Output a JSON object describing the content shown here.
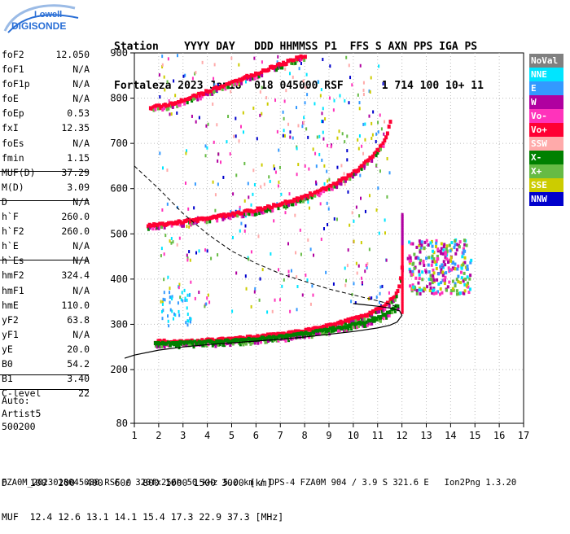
{
  "logo": {
    "line1": "Lowell",
    "line2": "DIGISONDE",
    "accent": "#2a6fd6"
  },
  "header": {
    "line1": "Station    YYYY DAY   DDD HHMMSS P1  FFS S AXN PPS IGA PS",
    "line2": "Fortaleza 2023 Jan18  018 045000 RSF      1 714 100 10+ 11"
  },
  "params": [
    {
      "label": "foF2",
      "value": "12.050"
    },
    {
      "label": "foF1",
      "value": "N/A"
    },
    {
      "label": "foF1p",
      "value": "N/A"
    },
    {
      "label": "foE",
      "value": "N/A"
    },
    {
      "label": "foEp",
      "value": "0.53"
    },
    {
      "label": "fxI",
      "value": "12.35"
    },
    {
      "label": "foEs",
      "value": "N/A"
    },
    {
      "label": "fmin",
      "value": "1.15"
    },
    {
      "label": "MUF(D)",
      "value": "37.29"
    },
    {
      "label": "M(D)",
      "value": "3.09"
    },
    {
      "label": "D",
      "value": "N/A"
    },
    {
      "label": "h`F",
      "value": "260.0"
    },
    {
      "label": "h`F2",
      "value": "260.0"
    },
    {
      "label": "h`E",
      "value": "N/A"
    },
    {
      "label": "h`Es",
      "value": "N/A"
    },
    {
      "label": "hmF2",
      "value": "324.4"
    },
    {
      "label": "hmF1",
      "value": "N/A"
    },
    {
      "label": "hmE",
      "value": "110.0"
    },
    {
      "label": "yF2",
      "value": "63.8"
    },
    {
      "label": "yF1",
      "value": "N/A"
    },
    {
      "label": "yE",
      "value": "20.0"
    },
    {
      "label": "B0",
      "value": "54.2"
    },
    {
      "label": "B1",
      "value": "3.40"
    },
    {
      "label": "C-level",
      "value": "22"
    }
  ],
  "autoscaling": {
    "line1": "Auto:",
    "line2": "Artist5",
    "line3": "500200"
  },
  "legend": [
    {
      "label": "NoVal",
      "color": "#808080"
    },
    {
      "label": "NNE",
      "color": "#00e5ff"
    },
    {
      "label": "E",
      "color": "#3399ff"
    },
    {
      "label": "W",
      "color": "#b000a0"
    },
    {
      "label": "Vo-",
      "color": "#ff33bb"
    },
    {
      "label": "Vo+",
      "color": "#ff0033"
    },
    {
      "label": "SSW",
      "color": "#ffaaaa"
    },
    {
      "label": "X-",
      "color": "#008000"
    },
    {
      "label": "X+",
      "color": "#66bb44"
    },
    {
      "label": "SSE",
      "color": "#cccc00"
    },
    {
      "label": "NNW",
      "color": "#0000cc"
    }
  ],
  "footer": {
    "line1": "D    100  200  400  600  800 1000 1500 3000 [km]",
    "line2": "MUF  12.4 12.6 13.1 14.1 15.4 17.3 22.9 37.3 [MHz]",
    "line3": "FZA0M_2023018045000.RSF / 320fx256h 50 kHz 5.0 km / DPS-4 FZA0M 904 / 3.9 S 321.6 E   Ion2Png 1.3.20"
  },
  "chart_data": {
    "type": "scatter",
    "xlim": [
      1,
      17
    ],
    "ylim": [
      80,
      900
    ],
    "x_ticks": [
      1,
      2,
      3,
      4,
      5,
      6,
      7,
      8,
      9,
      10,
      11,
      12,
      13,
      14,
      15,
      16,
      17
    ],
    "y_ticks": [
      80,
      200,
      300,
      400,
      500,
      600,
      700,
      800,
      900
    ],
    "y_ticks_mapped": [
      200,
      300,
      400,
      500,
      600,
      700,
      800,
      900
    ],
    "grid": "dotted",
    "series": [
      {
        "name": "Vo+",
        "color": "#ff0033",
        "x": [
          1.8,
          2.5,
          3.0,
          3.5,
          4.0,
          4.5,
          5.0,
          5.5,
          6.0,
          6.5,
          7.0,
          7.5,
          8.0,
          8.5,
          9.0,
          9.5,
          10.0,
          10.5,
          11.0,
          11.3,
          11.6,
          11.8,
          11.9,
          12.0,
          12.0
        ],
        "y": [
          262,
          262,
          263,
          264,
          265,
          266,
          268,
          270,
          273,
          276,
          279,
          283,
          287,
          292,
          298,
          305,
          313,
          322,
          335,
          345,
          360,
          380,
          410,
          450,
          540
        ]
      },
      {
        "name": "X-",
        "color": "#008000",
        "x": [
          1.8,
          2.5,
          3.0,
          3.5,
          4.0,
          4.5,
          5.0,
          5.5,
          6.0,
          6.5,
          7.0,
          7.5,
          8.0,
          8.5,
          9.0,
          9.5,
          10.0,
          10.5,
          11.0,
          11.3,
          11.6,
          11.8
        ],
        "y": [
          258,
          258,
          259,
          260,
          261,
          262,
          263,
          265,
          268,
          270,
          273,
          276,
          280,
          284,
          289,
          294,
          300,
          307,
          316,
          324,
          334,
          342
        ]
      },
      {
        "name": "Vo- (2nd hop)",
        "color": "#ff0033",
        "x": [
          1.5,
          2.0,
          2.5,
          3.0,
          3.5,
          4.0,
          4.5,
          5.0,
          5.5,
          6.0,
          6.5,
          7.0,
          7.5,
          8.0,
          8.5,
          9.0,
          9.5,
          10.0,
          10.5,
          11.0,
          11.3,
          11.5
        ],
        "y": [
          520,
          521,
          524,
          528,
          532,
          536,
          540,
          544,
          549,
          554,
          560,
          567,
          575,
          584,
          594,
          606,
          621,
          638,
          660,
          690,
          715,
          760
        ]
      },
      {
        "name": "3rd hop",
        "color": "#ff0033",
        "x": [
          1.6,
          2.0,
          2.5,
          3.0,
          3.5,
          4.0,
          4.5,
          5.0,
          5.5,
          6.0,
          6.5,
          7.0,
          7.5,
          8.0
        ],
        "y": [
          780,
          782,
          788,
          796,
          806,
          816,
          826,
          836,
          846,
          856,
          866,
          876,
          886,
          896
        ]
      },
      {
        "name": "W spread",
        "color": "#b000a0",
        "x": [
          12.4,
          12.6,
          12.8,
          13.0,
          13.2,
          13.4,
          13.6,
          13.8,
          14.0,
          14.2,
          14.4,
          14.6
        ],
        "y": [
          410,
          420,
          390,
          430,
          405,
          395,
          440,
          415,
          380,
          425,
          400,
          410
        ]
      }
    ],
    "profile": {
      "x": [
        0.6,
        1.0,
        2.0,
        3.0,
        4.0,
        5.0,
        6.0,
        7.0,
        8.0,
        9.0,
        10.0,
        11.0,
        11.5,
        11.8,
        12.0,
        11.9,
        11.5,
        11.0,
        10.5,
        10.0
      ],
      "y": [
        225,
        232,
        243,
        250,
        255,
        259,
        263,
        267,
        272,
        278,
        284,
        292,
        298,
        305,
        320,
        330,
        336,
        340,
        343,
        346
      ]
    },
    "extrapolated_profile": {
      "x": [
        1.0,
        2.0,
        3.0,
        4.0,
        5.0,
        6.0,
        7.0,
        8.0,
        9.0,
        10.0,
        11.0,
        11.5,
        11.9
      ],
      "y": [
        650,
        600,
        545,
        500,
        462,
        435,
        412,
        395,
        378,
        365,
        352,
        345,
        336
      ]
    }
  }
}
